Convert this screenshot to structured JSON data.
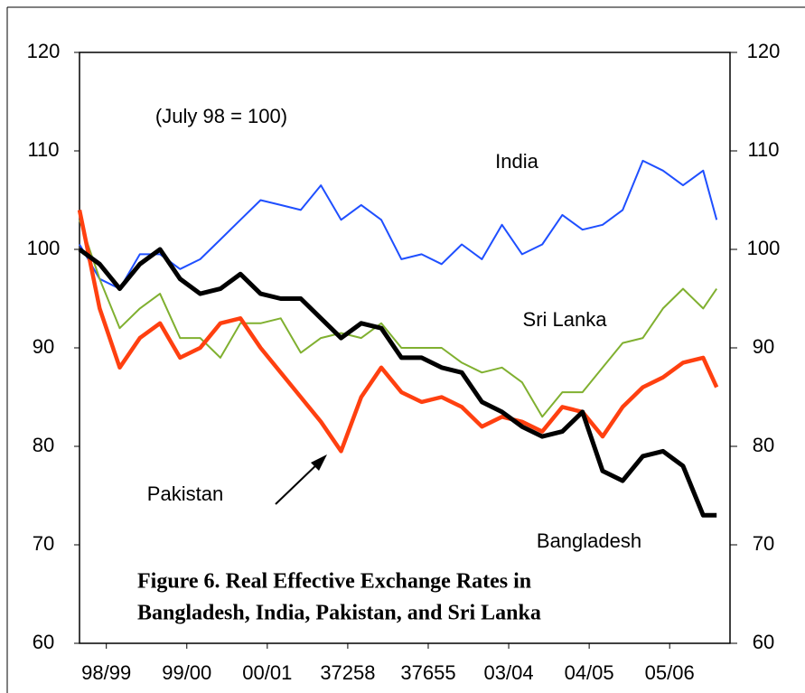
{
  "chart_data": {
    "type": "line",
    "title": [
      "Figure 6. Real Effective Exchange Rates in",
      "Bangladesh, India, Pakistan, and Sri Lanka"
    ],
    "subtitle": "(July 98 = 100)",
    "x": [
      0,
      3,
      6,
      9,
      12,
      15,
      18,
      21,
      24,
      27,
      30,
      33,
      36,
      39,
      42,
      45,
      48,
      51,
      54,
      57,
      60,
      63,
      66,
      69,
      72,
      75,
      78,
      81,
      84,
      87,
      90,
      93,
      95
    ],
    "xlim": [
      0,
      97
    ],
    "xticks": [
      {
        "value": 4,
        "label": "98/99"
      },
      {
        "value": 16,
        "label": "99/00"
      },
      {
        "value": 28,
        "label": "00/01"
      },
      {
        "value": 40,
        "label": "37258"
      },
      {
        "value": 52,
        "label": "37655"
      },
      {
        "value": 64,
        "label": "03/04"
      },
      {
        "value": 76,
        "label": "04/05"
      },
      {
        "value": 88,
        "label": "05/06"
      }
    ],
    "ylim": [
      60,
      120
    ],
    "yticks": [
      60,
      70,
      80,
      90,
      100,
      110,
      120
    ],
    "y2lim": [
      60,
      120
    ],
    "y2ticks": [
      60,
      70,
      80,
      90,
      100,
      110,
      120
    ],
    "series": [
      {
        "name": "India",
        "color": "#1f4fff",
        "values": [
          100.5,
          97,
          96,
          99.5,
          99.5,
          98,
          99,
          101,
          103,
          105,
          104.5,
          104,
          106.5,
          103,
          104.5,
          103,
          99,
          99.5,
          98.5,
          100.5,
          99,
          102.5,
          99.5,
          100.5,
          103.5,
          102,
          102.5,
          104,
          109,
          108,
          106.5,
          108,
          103
        ]
      },
      {
        "name": "Sri Lanka",
        "color": "#80b030",
        "values": [
          103,
          97,
          92,
          94,
          95.5,
          91,
          91,
          89,
          92.5,
          92.5,
          93,
          89.5,
          91,
          91.5,
          91,
          92.5,
          90,
          90,
          90,
          88.5,
          87.5,
          88,
          86.5,
          83,
          85.5,
          85.5,
          88,
          90.5,
          91,
          94,
          96,
          94,
          96
        ]
      },
      {
        "name": "Pakistan",
        "color": "#ff4010",
        "values": [
          104,
          94,
          88,
          91,
          92.5,
          89,
          90,
          92.5,
          93,
          90,
          87.5,
          85,
          82.5,
          79.5,
          85,
          88,
          85.5,
          84.5,
          85,
          84,
          82,
          83,
          82.5,
          81.5,
          84,
          83.5,
          81,
          84,
          86,
          87,
          88.5,
          89,
          86
        ]
      },
      {
        "name": "Bangladesh",
        "color": "#000000",
        "values": [
          100,
          98.5,
          96,
          98.5,
          100,
          97,
          95.5,
          96,
          97.5,
          95.5,
          95,
          95,
          93,
          91,
          92.5,
          92,
          89,
          89,
          88,
          87.5,
          84.5,
          83.5,
          82,
          81,
          81.5,
          83.5,
          77.5,
          76.5,
          79,
          79.5,
          78,
          73,
          73
        ]
      }
    ]
  }
}
